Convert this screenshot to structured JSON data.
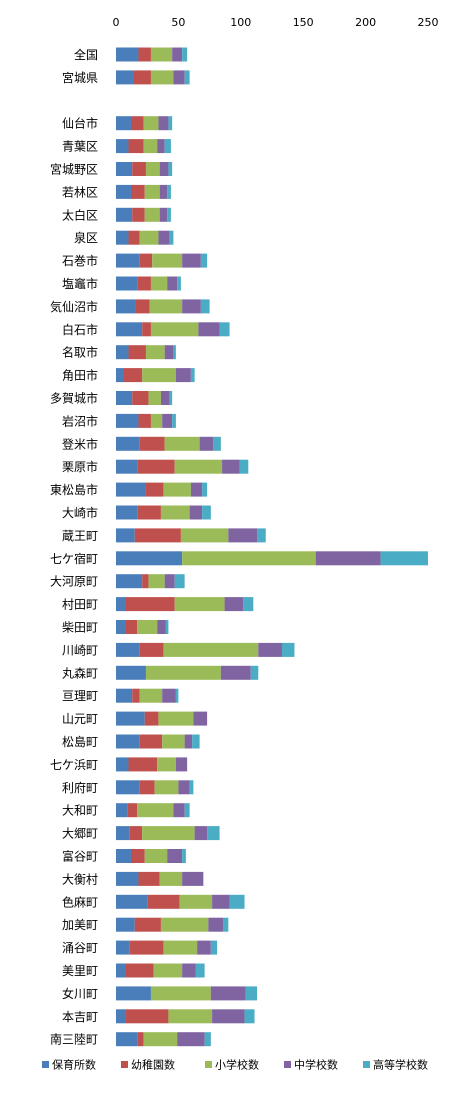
{
  "chart_data": {
    "type": "bar",
    "stacked": true,
    "orientation": "horizontal",
    "title": "",
    "xlabel": "",
    "ylabel": "",
    "xlim": [
      0,
      250
    ],
    "xticks": [
      0,
      50,
      100,
      150,
      200,
      250
    ],
    "grid": false,
    "legend_position": "bottom",
    "colors": [
      "#4a7ebb",
      "#c0504d",
      "#9bbb59",
      "#8064a2",
      "#4bacc6"
    ],
    "categories": [
      "全国",
      "宮城県",
      "",
      "仙台市",
      "青葉区",
      "宮城野区",
      "若林区",
      "太白区",
      "泉区",
      "石巻市",
      "塩竈市",
      "気仙沼市",
      "白石市",
      "名取市",
      "角田市",
      "多賀城市",
      "岩沼市",
      "登米市",
      "栗原市",
      "東松島市",
      "大崎市",
      "蔵王町",
      "七ケ宿町",
      "大河原町",
      "村田町",
      "柴田町",
      "川崎町",
      "丸森町",
      "亘理町",
      "山元町",
      "松島町",
      "七ケ浜町",
      "利府町",
      "大和町",
      "大郷町",
      "富谷町",
      "大衡村",
      "色麻町",
      "加美町",
      "涌谷町",
      "美里町",
      "女川町",
      "本吉町",
      "南三陸町"
    ],
    "series": [
      {
        "name": "保育所数",
        "values": [
          18,
          14,
          null,
          12,
          10,
          13,
          12,
          13,
          10,
          19,
          17,
          16,
          21,
          10,
          6,
          13,
          18,
          19,
          17,
          24,
          17,
          15,
          53,
          21,
          8,
          8,
          19,
          24,
          13,
          23,
          19,
          10,
          19,
          9,
          11,
          12,
          18,
          25,
          15,
          11,
          8,
          28,
          8,
          17
        ]
      },
      {
        "name": "幼稚園数",
        "values": [
          10,
          14,
          null,
          10,
          12,
          11,
          11,
          10,
          9,
          10,
          11,
          11,
          7,
          14,
          15,
          13,
          10,
          20,
          30,
          14,
          19,
          37,
          0,
          5,
          39,
          9,
          19,
          0,
          6,
          11,
          18,
          23,
          12,
          8,
          10,
          11,
          17,
          26,
          21,
          27,
          22,
          0,
          34,
          5
        ]
      },
      {
        "name": "小学校数",
        "values": [
          17,
          18,
          null,
          12,
          11,
          11,
          12,
          12,
          15,
          24,
          13,
          26,
          38,
          15,
          27,
          10,
          9,
          28,
          38,
          22,
          23,
          38,
          107,
          13,
          40,
          16,
          76,
          60,
          18,
          28,
          18,
          15,
          19,
          29,
          42,
          18,
          18,
          26,
          38,
          27,
          23,
          48,
          35,
          27
        ]
      },
      {
        "name": "中学校数",
        "values": [
          8,
          9,
          null,
          8,
          6,
          7,
          6,
          6,
          9,
          15,
          8,
          15,
          17,
          7,
          12,
          7,
          8,
          11,
          14,
          9,
          10,
          23,
          52,
          8,
          15,
          7,
          19,
          24,
          11,
          11,
          6,
          9,
          9,
          9,
          10,
          12,
          17,
          14,
          12,
          11,
          11,
          28,
          26,
          22
        ]
      },
      {
        "name": "高等学校数",
        "values": [
          4,
          4,
          null,
          3,
          5,
          3,
          3,
          3,
          3,
          5,
          3,
          7,
          8,
          2,
          3,
          2,
          3,
          6,
          7,
          4,
          7,
          7,
          38,
          8,
          8,
          2,
          10,
          6,
          2,
          0,
          6,
          0,
          3,
          4,
          10,
          3,
          0,
          12,
          4,
          5,
          7,
          9,
          8,
          5
        ]
      }
    ]
  }
}
